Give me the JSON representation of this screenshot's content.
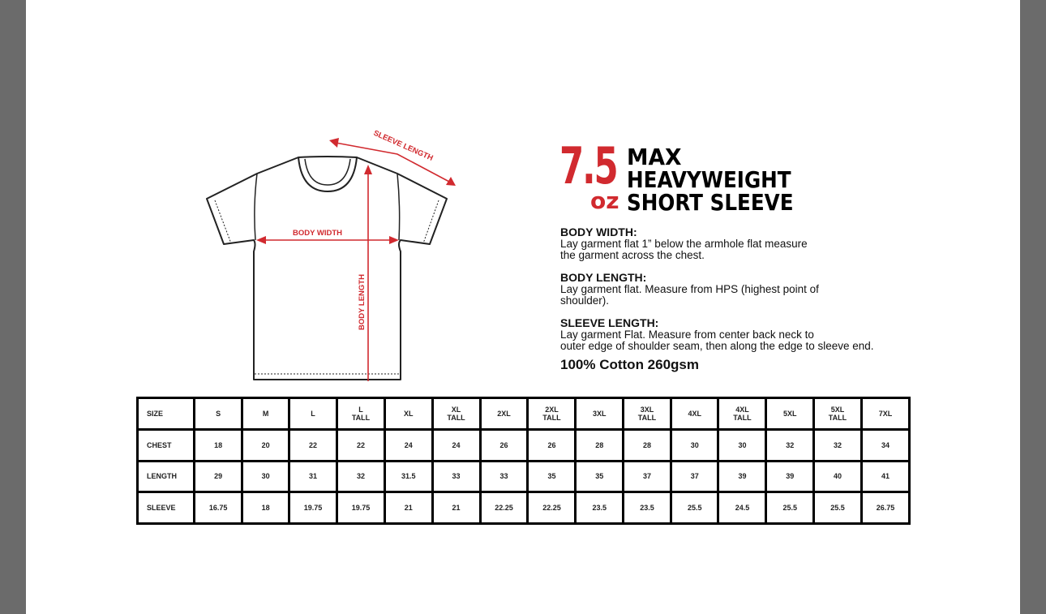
{
  "diagram": {
    "sleeve_length_label": "SLEEVE LENGTH",
    "body_width_label": "BODY WIDTH",
    "body_length_label": "BODY LENGTH",
    "accent_color": "#d12a2f"
  },
  "title": {
    "weight": "7.5",
    "unit": "oz",
    "line1": "MAX",
    "line2": "HEAVYWEIGHT",
    "line3": "SHORT SLEEVE"
  },
  "info": {
    "body_width_heading": "BODY WIDTH:",
    "body_width_text1": "Lay garment flat 1” below the armhole flat measure",
    "body_width_text2": "the garment across the chest.",
    "body_length_heading": "BODY LENGTH:",
    "body_length_text1": "Lay garment flat. Measure from HPS (highest point of",
    "body_length_text2": "shoulder).",
    "sleeve_length_heading": "SLEEVE LENGTH:",
    "sleeve_length_text1": "Lay garment Flat. Measure from center back neck to",
    "sleeve_length_text2": "outer edge of shoulder seam, then along the edge to sleeve end.",
    "fabric": "100% Cotton  260gsm"
  },
  "size_table": {
    "rows": [
      {
        "label": "SIZE",
        "values": [
          "S",
          "M",
          "L",
          "L\nTALL",
          "XL",
          "XL\nTALL",
          "2XL",
          "2XL\nTALL",
          "3XL",
          "3XL\nTALL",
          "4XL",
          "4XL\nTALL",
          "5XL",
          "5XL\nTALL",
          "7XL"
        ]
      },
      {
        "label": "CHEST",
        "values": [
          "18",
          "20",
          "22",
          "22",
          "24",
          "24",
          "26",
          "26",
          "28",
          "28",
          "30",
          "30",
          "32",
          "32",
          "34"
        ]
      },
      {
        "label": "LENGTH",
        "values": [
          "29",
          "30",
          "31",
          "32",
          "31.5",
          "33",
          "33",
          "35",
          "35",
          "37",
          "37",
          "39",
          "39",
          "40",
          "41"
        ]
      },
      {
        "label": "SLEEVE",
        "values": [
          "16.75",
          "18",
          "19.75",
          "19.75",
          "21",
          "21",
          "22.25",
          "22.25",
          "23.5",
          "23.5",
          "25.5",
          "24.5",
          "25.5",
          "25.5",
          "26.75"
        ]
      }
    ]
  }
}
